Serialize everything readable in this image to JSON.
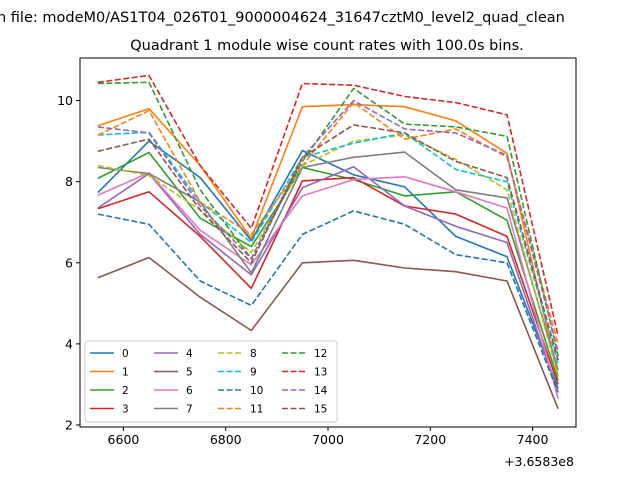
{
  "chart_data": {
    "type": "line",
    "suptitle": "n file: modeM0/AS1T04_026T01_9000004624_31647cztM0_level2_quad_clean",
    "title": "Quadrant 1 module wise count rates with 100.0s bins.",
    "xlabel": "",
    "ylabel": "",
    "x_offset_label": "+3.6583e8",
    "x": [
      6550,
      6650,
      6750,
      6850,
      6950,
      7050,
      7150,
      7250,
      7350,
      7450
    ],
    "xlim": [
      6515,
      7485
    ],
    "ylim": [
      1.95,
      11.05
    ],
    "xticks": [
      6600,
      6800,
      7000,
      7200,
      7400
    ],
    "yticks": [
      2,
      4,
      6,
      8,
      10
    ],
    "legend_position": "lower-left",
    "legend_columns": 4,
    "series": [
      {
        "name": "0",
        "color": "#1f77b4",
        "dash": "solid",
        "values": [
          7.73,
          9.0,
          8.1,
          6.55,
          8.77,
          8.17,
          7.87,
          6.65,
          6.15,
          2.9
        ]
      },
      {
        "name": "1",
        "color": "#ff7f0e",
        "dash": "solid",
        "values": [
          9.38,
          9.8,
          8.4,
          6.6,
          9.85,
          9.9,
          9.85,
          9.5,
          8.7,
          3.2
        ]
      },
      {
        "name": "2",
        "color": "#2ca02c",
        "dash": "solid",
        "values": [
          8.08,
          8.72,
          7.1,
          6.4,
          8.35,
          8.05,
          7.65,
          7.75,
          7.05,
          3.1
        ]
      },
      {
        "name": "3",
        "color": "#d62728",
        "dash": "solid",
        "values": [
          7.33,
          7.75,
          6.65,
          5.37,
          8.02,
          8.1,
          7.4,
          7.2,
          6.65,
          3.0
        ]
      },
      {
        "name": "4",
        "color": "#9467bd",
        "dash": "solid",
        "values": [
          7.35,
          8.2,
          6.7,
          5.7,
          7.85,
          8.37,
          7.4,
          6.9,
          6.5,
          2.8
        ]
      },
      {
        "name": "5",
        "color": "#8c564b",
        "dash": "solid",
        "values": [
          5.63,
          6.13,
          5.15,
          4.33,
          6.0,
          6.06,
          5.87,
          5.78,
          5.55,
          2.4
        ]
      },
      {
        "name": "6",
        "color": "#e377c2",
        "dash": "solid",
        "values": [
          7.67,
          8.22,
          6.8,
          5.95,
          7.65,
          8.05,
          8.12,
          7.75,
          7.35,
          2.65
        ]
      },
      {
        "name": "7",
        "color": "#7f7f7f",
        "dash": "solid",
        "values": [
          8.35,
          8.2,
          7.5,
          5.75,
          8.35,
          8.6,
          8.73,
          7.8,
          7.6,
          3.35
        ]
      },
      {
        "name": "8",
        "color": "#bcbd22",
        "dash": "dashed",
        "values": [
          8.4,
          8.15,
          7.3,
          6.25,
          8.4,
          9.0,
          9.15,
          8.55,
          7.8,
          3.2
        ]
      },
      {
        "name": "9",
        "color": "#17becf",
        "dash": "dashed",
        "values": [
          9.15,
          9.22,
          7.5,
          6.5,
          8.6,
          8.95,
          9.2,
          8.3,
          8.0,
          3.5
        ]
      },
      {
        "name": "10",
        "color": "#1f77b4",
        "dash": "dashed",
        "values": [
          7.2,
          6.95,
          5.55,
          4.95,
          6.7,
          7.28,
          6.95,
          6.2,
          6.0,
          2.8
        ]
      },
      {
        "name": "11",
        "color": "#ff7f0e",
        "dash": "dashed",
        "values": [
          9.15,
          9.75,
          7.5,
          6.7,
          8.4,
          9.95,
          9.05,
          9.3,
          8.6,
          4.0
        ]
      },
      {
        "name": "12",
        "color": "#2ca02c",
        "dash": "dashed",
        "values": [
          10.42,
          10.45,
          7.8,
          6.1,
          8.5,
          10.3,
          9.42,
          9.35,
          9.12,
          3.7
        ]
      },
      {
        "name": "13",
        "color": "#d62728",
        "dash": "dashed",
        "values": [
          10.45,
          10.62,
          8.4,
          6.85,
          10.42,
          10.38,
          10.1,
          9.95,
          9.65,
          4.2
        ]
      },
      {
        "name": "14",
        "color": "#9467bd",
        "dash": "dashed",
        "values": [
          9.35,
          9.2,
          7.4,
          6.1,
          8.6,
          10.0,
          9.3,
          9.2,
          8.65,
          3.8
        ]
      },
      {
        "name": "15",
        "color": "#8c564b",
        "dash": "dashed",
        "values": [
          8.75,
          9.05,
          7.3,
          6.0,
          8.6,
          9.4,
          9.2,
          8.5,
          8.1,
          3.6
        ]
      }
    ]
  }
}
